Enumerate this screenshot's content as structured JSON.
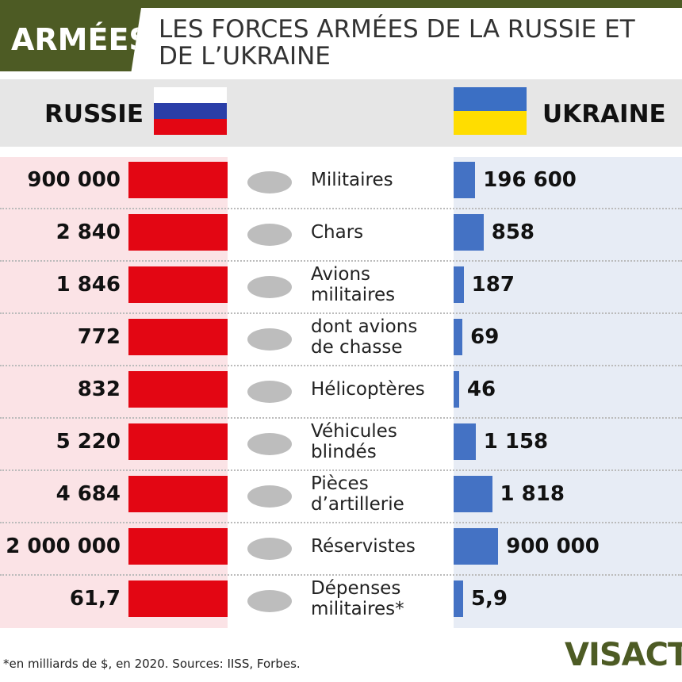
{
  "header": {
    "tag": "ARMÉES",
    "title": "LES FORCES ARMÉES DE LA RUSSIE ET DE L’UKRAINE"
  },
  "chart_data": {
    "type": "bar",
    "categories": [
      "Militaires",
      "Chars",
      "Avions militaires",
      "dont avions de chasse",
      "Hélicoptères",
      "Véhicules blindés",
      "Pièces d’artillerie",
      "Réservistes",
      "Dépenses militaires*"
    ],
    "series": [
      {
        "name": "RUSSIE",
        "color": "#e30613",
        "values": [
          900000,
          2840,
          1846,
          772,
          832,
          5220,
          4684,
          2000000,
          61.7
        ],
        "value_labels": [
          "900 000",
          "2 840",
          "1 846",
          "772",
          "832",
          "5 220",
          "4 684",
          "2 000 000",
          "61,7"
        ]
      },
      {
        "name": "UKRAINE",
        "color": "#4472c4",
        "values": [
          196600,
          858,
          187,
          69,
          46,
          1158,
          1818,
          900000,
          5.9
        ],
        "value_labels": [
          "196 600",
          "858",
          "187",
          "69",
          "46",
          "1 158",
          "1 818",
          "900 000",
          "5,9"
        ]
      }
    ]
  },
  "footnote": "*en milliards de $, en 2020. Sources: IISS, Forbes.",
  "logo": "VISACTU"
}
